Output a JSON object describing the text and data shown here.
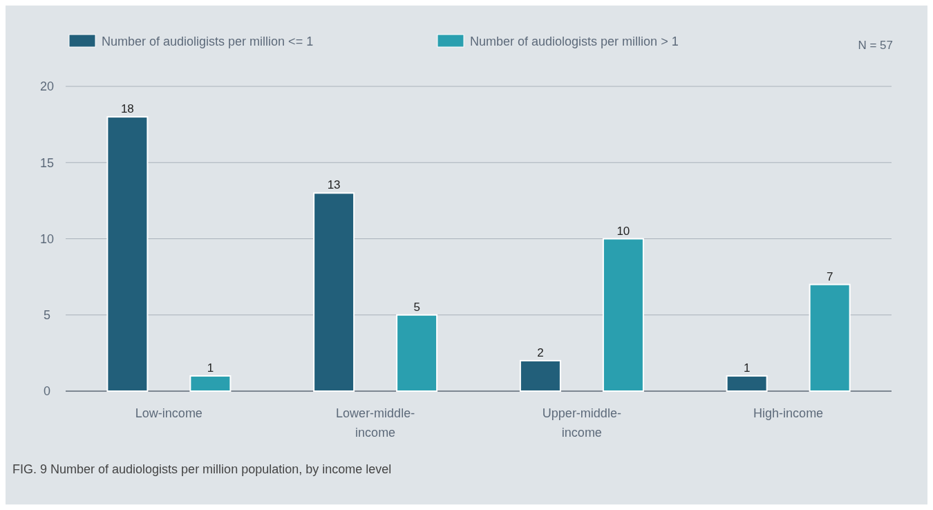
{
  "chart_data": {
    "type": "bar",
    "categories": [
      "Low-income",
      "Lower-middle-income",
      "Upper-middle-income",
      "High-income"
    ],
    "series": [
      {
        "name": "Number of audioligists per million <= 1",
        "color": "#225f7a",
        "values": [
          18,
          13,
          2,
          1
        ]
      },
      {
        "name": "Number of audiologists per million > 1",
        "color": "#2a9faf",
        "values": [
          1,
          5,
          10,
          7
        ]
      }
    ],
    "ylim": [
      0,
      20
    ],
    "yticks": [
      0,
      5,
      10,
      15,
      20
    ],
    "grid": "y",
    "legend": "top",
    "data_labels": true,
    "annotations": [
      "N = 57",
      "FIG. 9 Number of audiologists per million population, by income level"
    ]
  }
}
